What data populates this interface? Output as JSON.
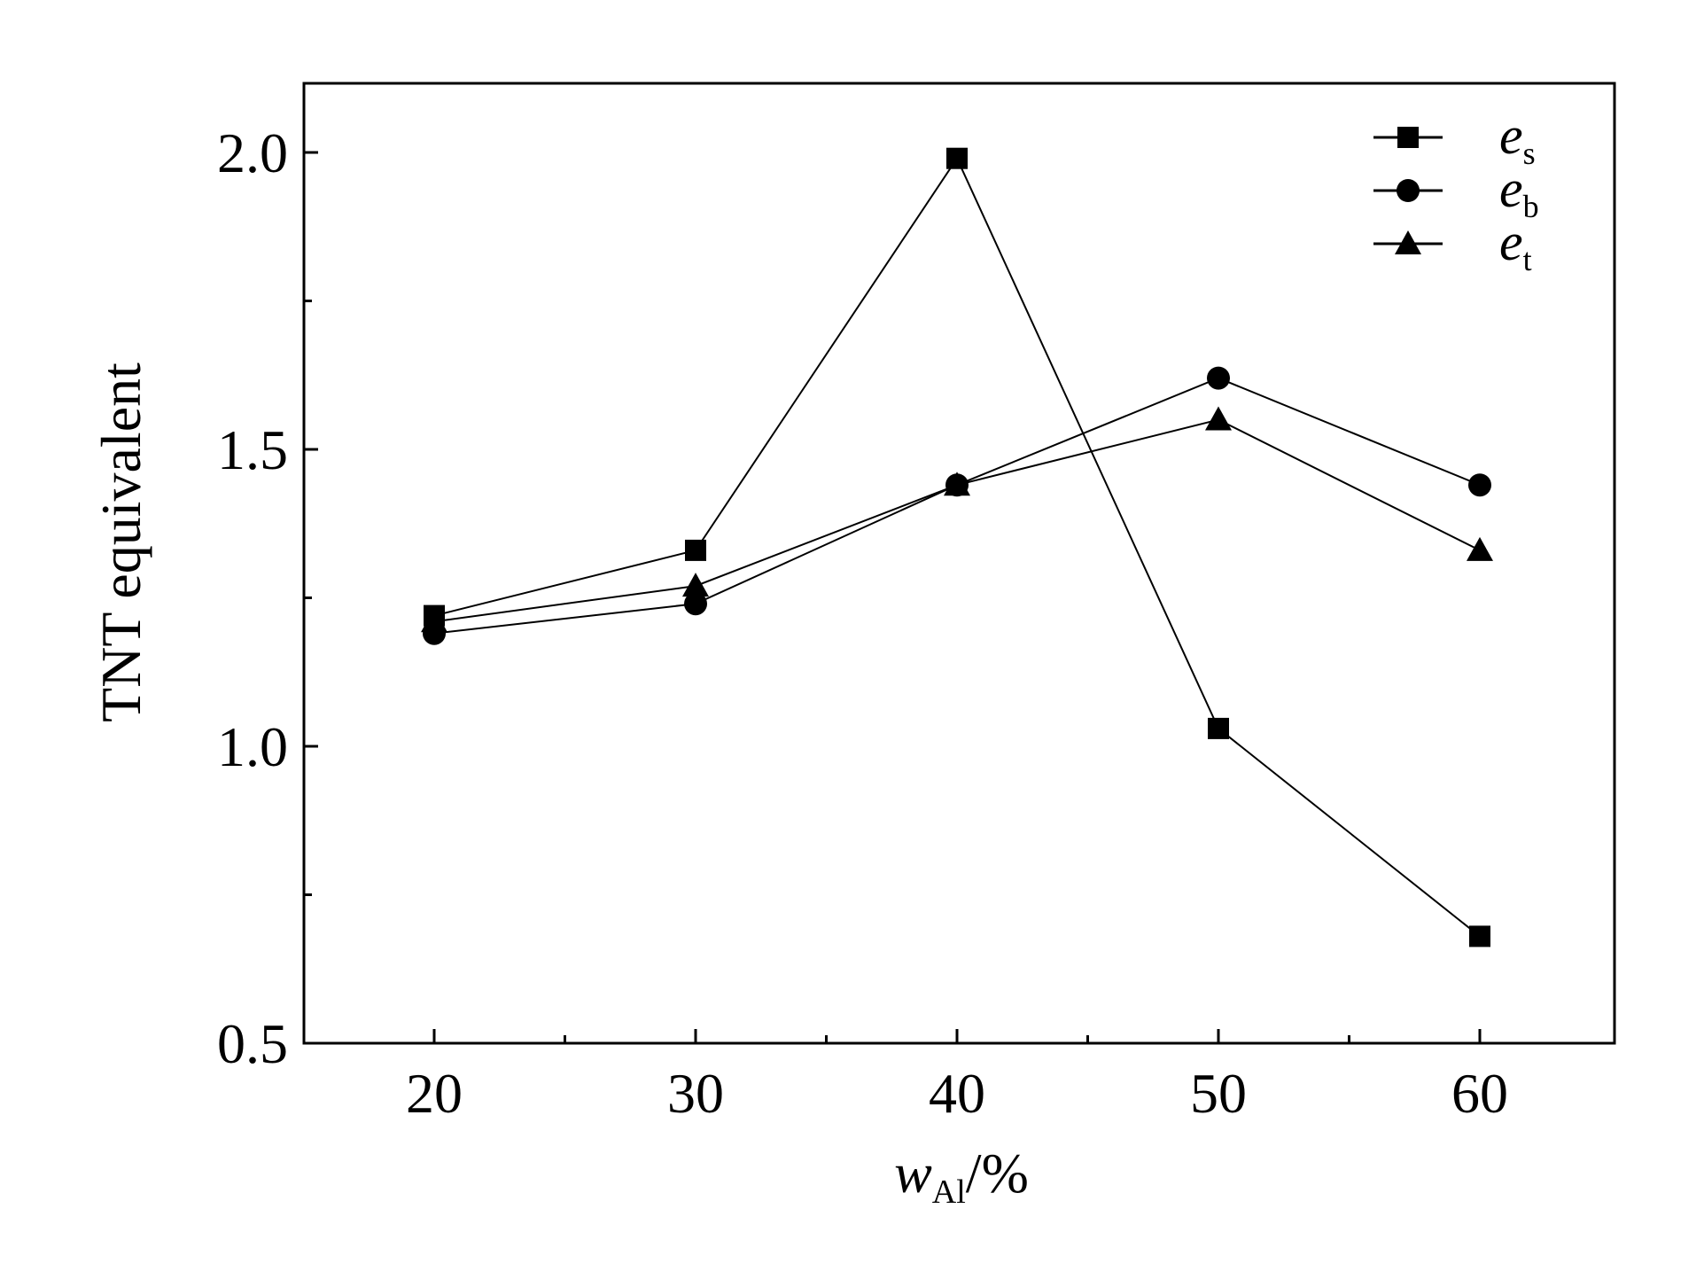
{
  "chart_data": {
    "type": "line",
    "x": [
      20,
      30,
      40,
      50,
      60
    ],
    "xlim": [
      15,
      65
    ],
    "ylim": [
      0.5,
      2.1
    ],
    "xticks": [
      20,
      30,
      40,
      50,
      60
    ],
    "xtick_labels": [
      "20",
      "30",
      "40",
      "50",
      "60"
    ],
    "yticks": [
      0.5,
      1.0,
      1.5,
      2.0
    ],
    "ytick_labels": [
      "0.5",
      "1.0",
      "1.5",
      "2.0"
    ],
    "ylabel": "TNT equivalent",
    "xlabel": {
      "main": "w",
      "sub": "Al",
      "suffix": "/%"
    },
    "grid": false,
    "legend_position": "top-right",
    "series": [
      {
        "name": "e",
        "sub": "s",
        "marker": "square",
        "values": [
          1.22,
          1.33,
          1.99,
          1.03,
          0.68
        ]
      },
      {
        "name": "e",
        "sub": "b",
        "marker": "circle",
        "values": [
          1.19,
          1.24,
          1.44,
          1.62,
          1.44
        ]
      },
      {
        "name": "e",
        "sub": "t",
        "marker": "triangle",
        "values": [
          1.21,
          1.27,
          1.44,
          1.55,
          1.33
        ]
      }
    ],
    "colors": {
      "line": "#000000",
      "marker": "#000000",
      "axis": "#000000"
    }
  }
}
